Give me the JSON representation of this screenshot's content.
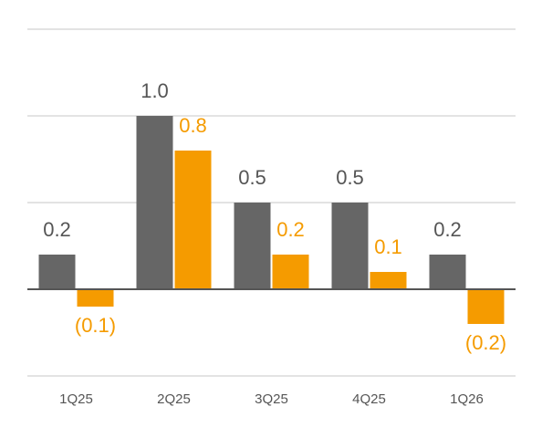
{
  "chart_data": {
    "type": "bar",
    "categories": [
      "1Q25",
      "2Q25",
      "3Q25",
      "4Q25",
      "1Q26"
    ],
    "series": [
      {
        "color": "#666666",
        "values": [
          0.2,
          1.0,
          0.5,
          0.5,
          0.2
        ],
        "value_labels": [
          "0.2",
          "1.0",
          "0.5",
          "0.5",
          "0.2"
        ]
      },
      {
        "color": "#f59b00",
        "values": [
          -0.1,
          0.8,
          0.2,
          0.1,
          -0.2
        ],
        "value_labels": [
          "(0.1)",
          "0.8",
          "0.2",
          "0.1",
          "(0.2)"
        ]
      }
    ],
    "ylim": [
      -0.5,
      1.5
    ],
    "yticks": [
      -0.5,
      0,
      0.5,
      1,
      1.5
    ],
    "grid": true
  }
}
